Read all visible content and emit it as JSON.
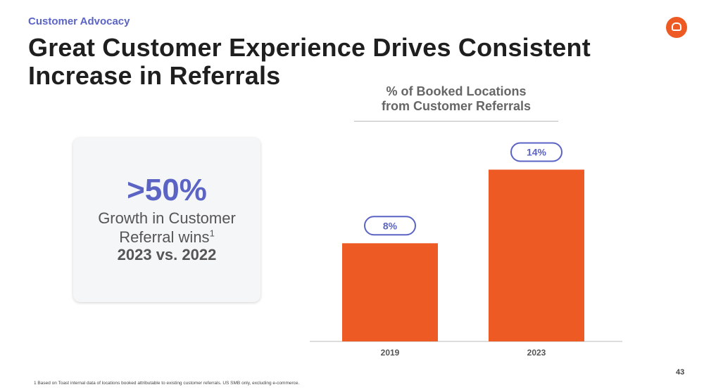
{
  "header": {
    "eyebrow": "Customer Advocacy",
    "title": "Great Customer Experience Drives Consistent Increase in Referrals"
  },
  "stat_card": {
    "value": ">50%",
    "line1": "Growth in Customer",
    "line2": "Referral wins",
    "superscript": "1",
    "period": "2023 vs. 2022"
  },
  "chart_data": {
    "type": "bar",
    "title_line1": "% of Booked Locations",
    "title_line2": "from Customer Referrals",
    "categories": [
      "2019",
      "2023"
    ],
    "values": [
      8,
      14
    ],
    "data_labels": [
      "8%",
      "14%"
    ],
    "ylim": [
      0,
      15
    ],
    "bar_color": "#ee5a24",
    "label_border_color": "#5b64c4",
    "grid": false
  },
  "footer": {
    "page_number": "43",
    "footnote": "1 Based on Toast internal data of locations booked attributable to existing customer referrals. US SMB only, excluding e-commerce."
  },
  "colors": {
    "accent": "#5b64c4",
    "brand": "#ee5a24"
  },
  "icons": {
    "logo": "toast-logo-icon"
  }
}
